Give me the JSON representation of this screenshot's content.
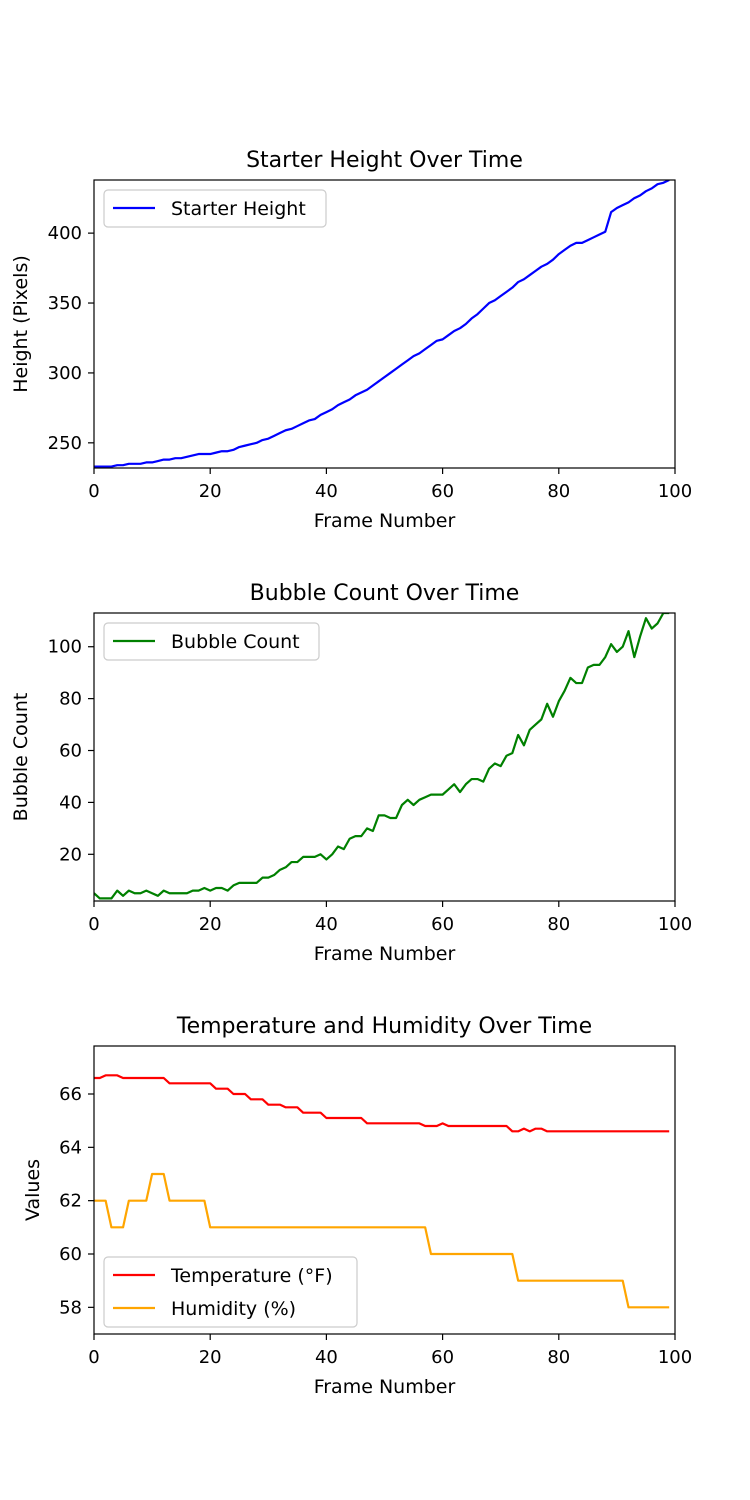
{
  "chart_data": [
    {
      "type": "line",
      "title": "Starter Height Over Time",
      "xlabel": "Frame Number",
      "ylabel": "Height (Pixels)",
      "xlim": [
        0,
        100
      ],
      "ylim": [
        232,
        438
      ],
      "xticks": [
        0,
        20,
        40,
        60,
        80,
        100
      ],
      "yticks": [
        250,
        300,
        350,
        400
      ],
      "grid": false,
      "legend_position": "top-left",
      "series": [
        {
          "name": "Starter Height",
          "color": "#0000ff",
          "x": [
            0,
            1,
            2,
            3,
            4,
            5,
            6,
            7,
            8,
            9,
            10,
            11,
            12,
            13,
            14,
            15,
            16,
            17,
            18,
            19,
            20,
            21,
            22,
            23,
            24,
            25,
            26,
            27,
            28,
            29,
            30,
            31,
            32,
            33,
            34,
            35,
            36,
            37,
            38,
            39,
            40,
            41,
            42,
            43,
            44,
            45,
            46,
            47,
            48,
            49,
            50,
            51,
            52,
            53,
            54,
            55,
            56,
            57,
            58,
            59,
            60,
            61,
            62,
            63,
            64,
            65,
            66,
            67,
            68,
            69,
            70,
            71,
            72,
            73,
            74,
            75,
            76,
            77,
            78,
            79,
            80,
            81,
            82,
            83,
            84,
            85,
            86,
            87,
            88,
            89,
            90,
            91,
            92,
            93,
            94,
            95,
            96,
            97,
            98,
            99
          ],
          "values": [
            233,
            233,
            233,
            233,
            234,
            234,
            235,
            235,
            235,
            236,
            236,
            237,
            238,
            238,
            239,
            239,
            240,
            241,
            242,
            242,
            242,
            243,
            244,
            244,
            245,
            247,
            248,
            249,
            250,
            252,
            253,
            255,
            257,
            259,
            260,
            262,
            264,
            266,
            267,
            270,
            272,
            274,
            277,
            279,
            281,
            284,
            286,
            288,
            291,
            294,
            297,
            300,
            303,
            306,
            309,
            312,
            314,
            317,
            320,
            323,
            324,
            327,
            330,
            332,
            335,
            339,
            342,
            346,
            350,
            352,
            355,
            358,
            361,
            365,
            367,
            370,
            373,
            376,
            378,
            381,
            385,
            388,
            391,
            393,
            393,
            395,
            397,
            399,
            401,
            415,
            418,
            420,
            422,
            425,
            427,
            430,
            432,
            435,
            436,
            438
          ]
        }
      ]
    },
    {
      "type": "line",
      "title": "Bubble Count Over Time",
      "xlabel": "Frame Number",
      "ylabel": "Bubble Count",
      "xlim": [
        0,
        100
      ],
      "ylim": [
        2,
        113
      ],
      "xticks": [
        0,
        20,
        40,
        60,
        80,
        100
      ],
      "yticks": [
        20,
        40,
        60,
        80,
        100
      ],
      "grid": false,
      "legend_position": "top-left",
      "series": [
        {
          "name": "Bubble Count",
          "color": "#008000",
          "x": [
            0,
            1,
            2,
            3,
            4,
            5,
            6,
            7,
            8,
            9,
            10,
            11,
            12,
            13,
            14,
            15,
            16,
            17,
            18,
            19,
            20,
            21,
            22,
            23,
            24,
            25,
            26,
            27,
            28,
            29,
            30,
            31,
            32,
            33,
            34,
            35,
            36,
            37,
            38,
            39,
            40,
            41,
            42,
            43,
            44,
            45,
            46,
            47,
            48,
            49,
            50,
            51,
            52,
            53,
            54,
            55,
            56,
            57,
            58,
            59,
            60,
            61,
            62,
            63,
            64,
            65,
            66,
            67,
            68,
            69,
            70,
            71,
            72,
            73,
            74,
            75,
            76,
            77,
            78,
            79,
            80,
            81,
            82,
            83,
            84,
            85,
            86,
            87,
            88,
            89,
            90,
            91,
            92,
            93,
            94,
            95,
            96,
            97,
            98,
            99
          ],
          "values": [
            5,
            3,
            3,
            3,
            6,
            4,
            6,
            5,
            5,
            6,
            5,
            4,
            6,
            5,
            5,
            5,
            5,
            6,
            6,
            7,
            6,
            7,
            7,
            6,
            8,
            9,
            9,
            9,
            9,
            11,
            11,
            12,
            14,
            15,
            17,
            17,
            19,
            19,
            19,
            20,
            18,
            20,
            23,
            22,
            26,
            27,
            27,
            30,
            29,
            35,
            35,
            34,
            34,
            39,
            41,
            39,
            41,
            42,
            43,
            43,
            43,
            45,
            47,
            44,
            47,
            49,
            49,
            48,
            53,
            55,
            54,
            58,
            59,
            66,
            62,
            68,
            70,
            72,
            78,
            73,
            79,
            83,
            88,
            86,
            86,
            92,
            93,
            93,
            96,
            101,
            98,
            100,
            106,
            96,
            104,
            111,
            107,
            109,
            113,
            113
          ]
        }
      ]
    },
    {
      "type": "line",
      "title": "Temperature and Humidity Over Time",
      "xlabel": "Frame Number",
      "ylabel": "Values",
      "xlim": [
        0,
        100
      ],
      "ylim": [
        57,
        67.8
      ],
      "xticks": [
        0,
        20,
        40,
        60,
        80,
        100
      ],
      "yticks": [
        58,
        60,
        62,
        64,
        66
      ],
      "grid": false,
      "legend_position": "bottom-left",
      "series": [
        {
          "name": "Temperature (°F)",
          "color": "#ff0000",
          "x": [
            0,
            1,
            2,
            3,
            4,
            5,
            6,
            7,
            8,
            9,
            10,
            11,
            12,
            13,
            14,
            15,
            16,
            17,
            18,
            19,
            20,
            21,
            22,
            23,
            24,
            25,
            26,
            27,
            28,
            29,
            30,
            31,
            32,
            33,
            34,
            35,
            36,
            37,
            38,
            39,
            40,
            41,
            42,
            43,
            44,
            45,
            46,
            47,
            48,
            49,
            50,
            51,
            52,
            53,
            54,
            55,
            56,
            57,
            58,
            59,
            60,
            61,
            62,
            63,
            64,
            65,
            66,
            67,
            68,
            69,
            70,
            71,
            72,
            73,
            74,
            75,
            76,
            77,
            78,
            79,
            80,
            81,
            82,
            83,
            84,
            85,
            86,
            87,
            88,
            89,
            90,
            91,
            92,
            93,
            94,
            95,
            96,
            97,
            98,
            99
          ],
          "values": [
            66.6,
            66.6,
            66.7,
            66.7,
            66.7,
            66.6,
            66.6,
            66.6,
            66.6,
            66.6,
            66.6,
            66.6,
            66.6,
            66.4,
            66.4,
            66.4,
            66.4,
            66.4,
            66.4,
            66.4,
            66.4,
            66.2,
            66.2,
            66.2,
            66.0,
            66.0,
            66.0,
            65.8,
            65.8,
            65.8,
            65.6,
            65.6,
            65.6,
            65.5,
            65.5,
            65.5,
            65.3,
            65.3,
            65.3,
            65.3,
            65.1,
            65.1,
            65.1,
            65.1,
            65.1,
            65.1,
            65.1,
            64.9,
            64.9,
            64.9,
            64.9,
            64.9,
            64.9,
            64.9,
            64.9,
            64.9,
            64.9,
            64.8,
            64.8,
            64.8,
            64.9,
            64.8,
            64.8,
            64.8,
            64.8,
            64.8,
            64.8,
            64.8,
            64.8,
            64.8,
            64.8,
            64.8,
            64.6,
            64.6,
            64.7,
            64.6,
            64.7,
            64.7,
            64.6,
            64.6,
            64.6,
            64.6,
            64.6,
            64.6,
            64.6,
            64.6,
            64.6,
            64.6,
            64.6,
            64.6,
            64.6,
            64.6,
            64.6,
            64.6,
            64.6,
            64.6,
            64.6,
            64.6,
            64.6,
            64.6
          ]
        },
        {
          "name": "Humidity (%)",
          "color": "#ffa500",
          "x": [
            0,
            1,
            2,
            3,
            4,
            5,
            6,
            7,
            8,
            9,
            10,
            11,
            12,
            13,
            14,
            15,
            16,
            17,
            18,
            19,
            20,
            21,
            22,
            23,
            24,
            25,
            26,
            27,
            28,
            29,
            30,
            31,
            32,
            33,
            34,
            35,
            36,
            37,
            38,
            39,
            40,
            41,
            42,
            43,
            44,
            45,
            46,
            47,
            48,
            49,
            50,
            51,
            52,
            53,
            54,
            55,
            56,
            57,
            58,
            59,
            60,
            61,
            62,
            63,
            64,
            65,
            66,
            67,
            68,
            69,
            70,
            71,
            72,
            73,
            74,
            75,
            76,
            77,
            78,
            79,
            80,
            81,
            82,
            83,
            84,
            85,
            86,
            87,
            88,
            89,
            90,
            91,
            92,
            93,
            94,
            95,
            96,
            97,
            98,
            99
          ],
          "values": [
            62,
            62,
            62,
            61,
            61,
            61,
            62,
            62,
            62,
            62,
            63,
            63,
            63,
            62,
            62,
            62,
            62,
            62,
            62,
            62,
            61,
            61,
            61,
            61,
            61,
            61,
            61,
            61,
            61,
            61,
            61,
            61,
            61,
            61,
            61,
            61,
            61,
            61,
            61,
            61,
            61,
            61,
            61,
            61,
            61,
            61,
            61,
            61,
            61,
            61,
            61,
            61,
            61,
            61,
            61,
            61,
            61,
            61,
            60,
            60,
            60,
            60,
            60,
            60,
            60,
            60,
            60,
            60,
            60,
            60,
            60,
            60,
            60,
            59,
            59,
            59,
            59,
            59,
            59,
            59,
            59,
            59,
            59,
            59,
            59,
            59,
            59,
            59,
            59,
            59,
            59,
            59,
            58,
            58,
            58,
            58,
            58,
            58,
            58,
            58
          ]
        }
      ]
    }
  ]
}
